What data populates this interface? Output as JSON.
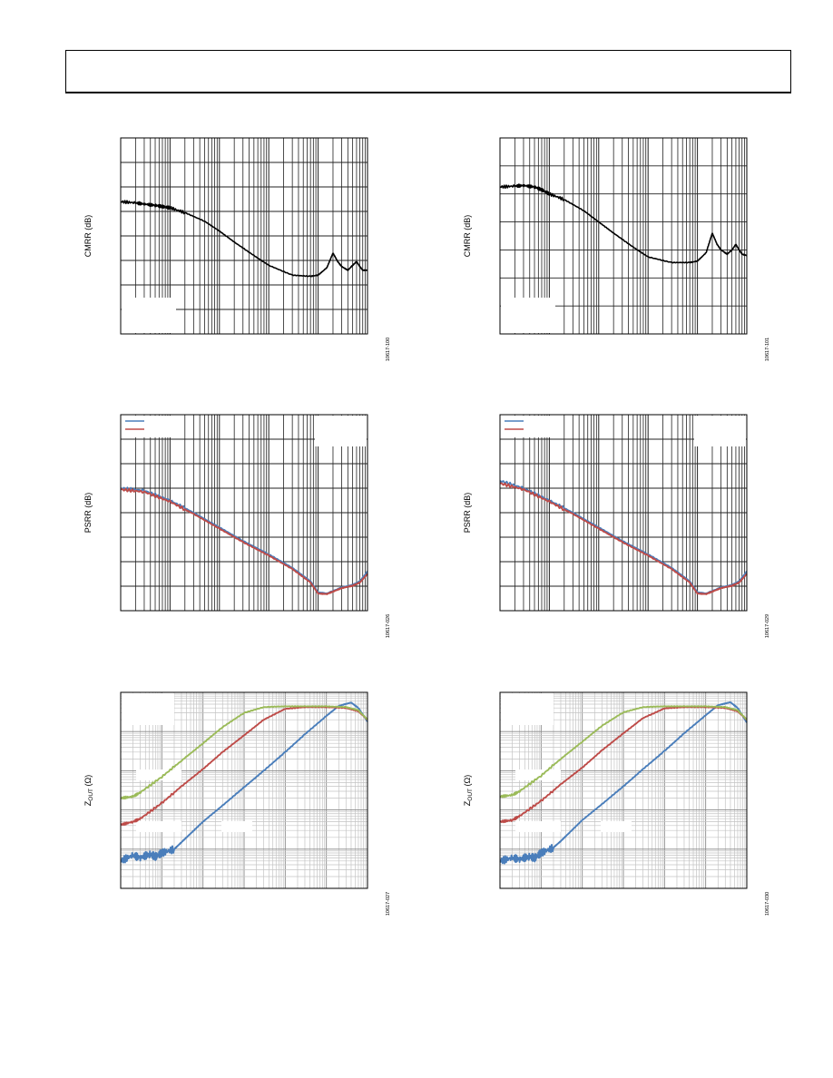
{
  "page": {
    "header_text": ""
  },
  "chart_data": [
    {
      "id": "cmrr-left",
      "type": "line",
      "xscale": "log",
      "xlim": [
        100,
        10000000
      ],
      "ylim": [
        0,
        8
      ],
      "ylabel": "CMRR (dB)",
      "figure_code": "10617-100",
      "grid": true,
      "series": [
        {
          "name": "",
          "color": "#000000",
          "x": [
            100,
            200,
            300,
            500,
            700,
            1000,
            2000,
            5000,
            10000,
            20000,
            50000,
            100000,
            300000,
            700000,
            1000000,
            1500000,
            2000000,
            2500000,
            3000000,
            4000000,
            5000000,
            6000000,
            7000000,
            8000000,
            10000000
          ],
          "y": [
            5.4,
            5.35,
            5.3,
            5.25,
            5.2,
            5.15,
            4.95,
            4.6,
            4.2,
            3.75,
            3.2,
            2.8,
            2.4,
            2.35,
            2.4,
            2.7,
            3.3,
            2.95,
            2.75,
            2.6,
            2.8,
            2.95,
            2.75,
            2.6,
            2.6
          ]
        }
      ]
    },
    {
      "id": "cmrr-right",
      "type": "line",
      "xscale": "log",
      "xlim": [
        100,
        10000000
      ],
      "ylim": [
        0,
        7
      ],
      "ylabel": "CMRR (dB)",
      "figure_code": "10617-101",
      "grid": true,
      "series": [
        {
          "name": "",
          "color": "#000000",
          "x": [
            100,
            200,
            300,
            500,
            700,
            1000,
            2000,
            5000,
            10000,
            20000,
            50000,
            100000,
            300000,
            700000,
            1000000,
            1500000,
            2000000,
            2500000,
            3000000,
            4000000,
            5000000,
            6000000,
            7000000,
            8000000,
            10000000
          ],
          "y": [
            5.25,
            5.28,
            5.3,
            5.25,
            5.15,
            5.0,
            4.8,
            4.4,
            4.0,
            3.6,
            3.1,
            2.75,
            2.55,
            2.55,
            2.6,
            2.9,
            3.6,
            3.2,
            3.0,
            2.85,
            3.0,
            3.2,
            3.0,
            2.85,
            2.8
          ]
        }
      ]
    },
    {
      "id": "psrr-left",
      "type": "line",
      "xscale": "log",
      "xlim": [
        100,
        10000000
      ],
      "ylim": [
        0,
        8
      ],
      "ylabel": "PSRR (dB)",
      "figure_code": "10617-026",
      "grid": true,
      "legend": "top-left",
      "series": [
        {
          "name": "",
          "color": "#4a7ebb",
          "x": [
            100,
            300,
            1000,
            3000,
            10000,
            30000,
            100000,
            300000,
            700000,
            1000000,
            1500000,
            2000000,
            3000000,
            5000000,
            7000000,
            10000000
          ],
          "y": [
            5.0,
            4.9,
            4.5,
            4.0,
            3.4,
            2.85,
            2.3,
            1.75,
            1.2,
            0.75,
            0.7,
            0.8,
            0.95,
            1.05,
            1.2,
            1.6
          ]
        },
        {
          "name": "",
          "color": "#be4b48",
          "x": [
            100,
            300,
            1000,
            3000,
            10000,
            30000,
            100000,
            300000,
            700000,
            1000000,
            1500000,
            2000000,
            3000000,
            5000000,
            7000000,
            10000000
          ],
          "y": [
            4.95,
            4.85,
            4.45,
            3.95,
            3.35,
            2.8,
            2.25,
            1.7,
            1.15,
            0.7,
            0.68,
            0.78,
            0.92,
            1.02,
            1.15,
            1.5
          ]
        }
      ]
    },
    {
      "id": "psrr-right",
      "type": "line",
      "xscale": "log",
      "xlim": [
        100,
        10000000
      ],
      "ylim": [
        0,
        8
      ],
      "ylabel": "PSRR (dB)",
      "figure_code": "10617-029",
      "grid": true,
      "legend": "top-left",
      "series": [
        {
          "name": "",
          "color": "#4a7ebb",
          "x": [
            100,
            300,
            1000,
            3000,
            10000,
            30000,
            100000,
            300000,
            700000,
            1000000,
            1500000,
            2000000,
            3000000,
            5000000,
            7000000,
            10000000
          ],
          "y": [
            5.3,
            5.0,
            4.5,
            4.0,
            3.4,
            2.85,
            2.3,
            1.75,
            1.2,
            0.75,
            0.7,
            0.8,
            0.95,
            1.05,
            1.2,
            1.6
          ]
        },
        {
          "name": "",
          "color": "#be4b48",
          "x": [
            100,
            300,
            1000,
            3000,
            10000,
            30000,
            100000,
            300000,
            700000,
            1000000,
            1500000,
            2000000,
            3000000,
            5000000,
            7000000,
            10000000
          ],
          "y": [
            5.2,
            4.95,
            4.45,
            3.95,
            3.35,
            2.8,
            2.25,
            1.7,
            1.15,
            0.7,
            0.68,
            0.78,
            0.92,
            1.02,
            1.15,
            1.5
          ]
        }
      ]
    },
    {
      "id": "zout-left",
      "type": "line",
      "xscale": "log",
      "yscale": "log",
      "xlim": [
        100,
        100000000
      ],
      "ylim": [
        0.01,
        1000
      ],
      "ylabel": "ZOUT (Ω)",
      "ylabel_main": "Z",
      "ylabel_sub": "OUT",
      "ylabel_unit": " (Ω)",
      "figure_code": "10617-027",
      "grid": true,
      "series": [
        {
          "name": "",
          "color": "#4a7ebb",
          "x": [
            100,
            200,
            300,
            500,
            700,
            1000,
            2000,
            3000,
            5000,
            10000,
            30000,
            100000,
            300000,
            1000000,
            3000000,
            10000000,
            20000000,
            40000000,
            60000000,
            100000000
          ],
          "y": [
            0.05,
            0.07,
            0.06,
            0.075,
            0.065,
            0.08,
            0.1,
            0.15,
            0.25,
            0.5,
            1.3,
            3.8,
            10,
            30,
            85,
            250,
            450,
            550,
            400,
            180
          ]
        },
        {
          "name": "",
          "color": "#be4b48",
          "x": [
            100,
            200,
            300,
            1000,
            3000,
            10000,
            30000,
            100000,
            300000,
            1000000,
            3000000,
            10000000,
            30000000,
            60000000,
            100000000
          ],
          "y": [
            0.42,
            0.5,
            0.6,
            1.5,
            4,
            11,
            30,
            80,
            200,
            380,
            420,
            420,
            400,
            330,
            200
          ]
        },
        {
          "name": "",
          "color": "#9bbb59",
          "x": [
            100,
            200,
            300,
            1000,
            3000,
            10000,
            30000,
            100000,
            300000,
            1000000,
            3000000,
            10000000,
            30000000,
            60000000,
            100000000
          ],
          "y": [
            2,
            2.2,
            2.8,
            7,
            18,
            50,
            130,
            300,
            420,
            440,
            440,
            440,
            420,
            350,
            200
          ]
        }
      ]
    },
    {
      "id": "zout-right",
      "type": "line",
      "xscale": "log",
      "yscale": "log",
      "xlim": [
        100,
        100000000
      ],
      "ylim": [
        0.01,
        1000
      ],
      "ylabel": "ZOUT (Ω)",
      "ylabel_main": "Z",
      "ylabel_sub": "OUT",
      "ylabel_unit": " (Ω)",
      "figure_code": "10617-030",
      "grid": true,
      "series": [
        {
          "name": "",
          "color": "#4a7ebb",
          "x": [
            100,
            200,
            300,
            500,
            700,
            1000,
            2000,
            3000,
            5000,
            10000,
            30000,
            100000,
            300000,
            1000000,
            3000000,
            10000000,
            20000000,
            40000000,
            60000000,
            100000000
          ],
          "y": [
            0.05,
            0.06,
            0.055,
            0.065,
            0.06,
            0.08,
            0.11,
            0.16,
            0.27,
            0.55,
            1.4,
            4,
            11,
            32,
            90,
            260,
            470,
            560,
            400,
            170
          ]
        },
        {
          "name": "",
          "color": "#be4b48",
          "x": [
            100,
            200,
            300,
            1000,
            3000,
            10000,
            30000,
            100000,
            300000,
            1000000,
            3000000,
            10000000,
            30000000,
            60000000,
            100000000
          ],
          "y": [
            0.5,
            0.55,
            0.7,
            1.7,
            4.5,
            12,
            33,
            90,
            220,
            390,
            420,
            420,
            400,
            330,
            200
          ]
        },
        {
          "name": "",
          "color": "#9bbb59",
          "x": [
            100,
            200,
            300,
            1000,
            3000,
            10000,
            30000,
            100000,
            300000,
            1000000,
            3000000,
            10000000,
            30000000,
            60000000,
            100000000
          ],
          "y": [
            2.2,
            2.4,
            3.0,
            7.5,
            20,
            55,
            140,
            310,
            420,
            440,
            440,
            440,
            420,
            350,
            200
          ]
        }
      ]
    }
  ]
}
